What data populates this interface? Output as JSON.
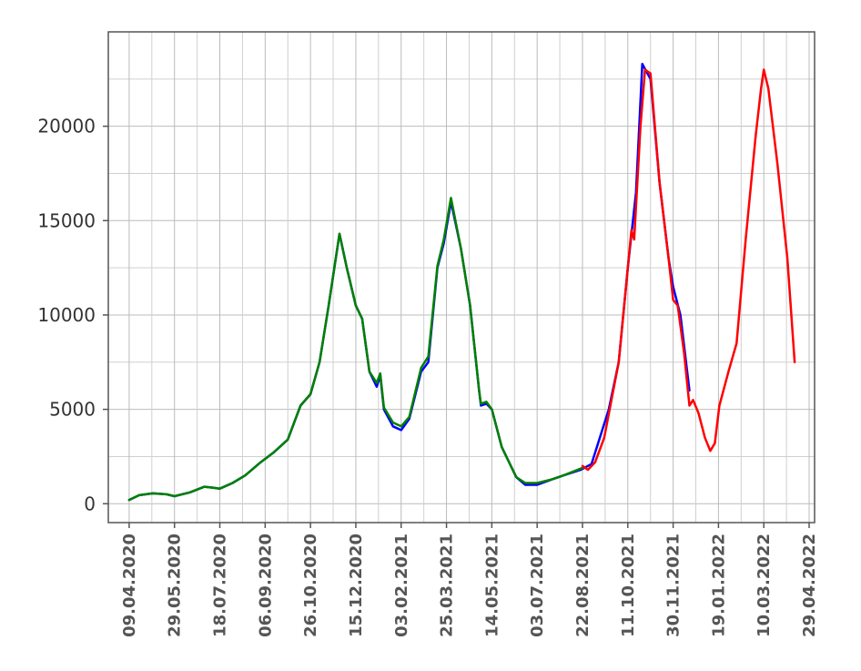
{
  "chart_data": {
    "type": "line",
    "title": "",
    "xlabel": "",
    "ylabel": "",
    "grid": true,
    "legend": "none",
    "x_tick_labels": [
      "09.04.2020",
      "29.05.2020",
      "18.07.2020",
      "06.09.2020",
      "26.10.2020",
      "15.12.2020",
      "03.02.2021",
      "25.03.2021",
      "14.05.2021",
      "03.07.2021",
      "22.08.2021",
      "11.10.2021",
      "30.11.2021",
      "19.01.2022",
      "10.03.2022",
      "29.04.2022"
    ],
    "y_ticks": [
      0,
      5000,
      10000,
      15000,
      20000
    ],
    "y_tick_labels": [
      "0",
      "5000",
      "10000",
      "15000",
      "20000"
    ],
    "xlim": [
      "2020-03-17",
      "2022-05-05"
    ],
    "ylim": [
      -1000,
      25000
    ],
    "series": [
      {
        "color": "#0000ff",
        "points": [
          [
            "2020-04-09",
            200
          ],
          [
            "2020-04-20",
            450
          ],
          [
            "2020-05-05",
            550
          ],
          [
            "2020-05-20",
            500
          ],
          [
            "2020-05-29",
            400
          ],
          [
            "2020-06-15",
            600
          ],
          [
            "2020-07-01",
            900
          ],
          [
            "2020-07-10",
            850
          ],
          [
            "2020-07-18",
            800
          ],
          [
            "2020-08-01",
            1100
          ],
          [
            "2020-08-15",
            1500
          ],
          [
            "2020-09-01",
            2200
          ],
          [
            "2020-09-15",
            2700
          ],
          [
            "2020-10-01",
            3400
          ],
          [
            "2020-10-15",
            5200
          ],
          [
            "2020-10-26",
            5800
          ],
          [
            "2020-11-05",
            7500
          ],
          [
            "2020-11-15",
            10500
          ],
          [
            "2020-11-27",
            14300
          ],
          [
            "2020-12-05",
            12500
          ],
          [
            "2020-12-15",
            10500
          ],
          [
            "2020-12-22",
            9800
          ],
          [
            "2020-12-30",
            7000
          ],
          [
            "2021-01-07",
            6200
          ],
          [
            "2021-01-11",
            6800
          ],
          [
            "2021-01-15",
            5000
          ],
          [
            "2021-01-25",
            4100
          ],
          [
            "2021-02-03",
            3900
          ],
          [
            "2021-02-12",
            4500
          ],
          [
            "2021-02-25",
            7000
          ],
          [
            "2021-03-05",
            7500
          ],
          [
            "2021-03-15",
            12500
          ],
          [
            "2021-03-22",
            13800
          ],
          [
            "2021-03-30",
            16000
          ],
          [
            "2021-04-10",
            13500
          ],
          [
            "2021-04-20",
            10500
          ],
          [
            "2021-04-30",
            6000
          ],
          [
            "2021-05-02",
            5200
          ],
          [
            "2021-05-08",
            5300
          ],
          [
            "2021-05-14",
            5000
          ],
          [
            "2021-05-25",
            3000
          ],
          [
            "2021-06-10",
            1400
          ],
          [
            "2021-06-20",
            1000
          ],
          [
            "2021-07-03",
            1000
          ],
          [
            "2021-07-20",
            1300
          ],
          [
            "2021-08-01",
            1500
          ],
          [
            "2021-08-20",
            1800
          ],
          [
            "2021-09-01",
            2100
          ],
          [
            "2021-09-20",
            5000
          ],
          [
            "2021-10-01",
            7500
          ],
          [
            "2021-10-11",
            12500
          ],
          [
            "2021-10-20",
            16500
          ],
          [
            "2021-10-27",
            23300
          ],
          [
            "2021-11-05",
            22500
          ],
          [
            "2021-11-15",
            17000
          ],
          [
            "2021-11-25",
            13000
          ],
          [
            "2021-11-30",
            11500
          ],
          [
            "2021-12-08",
            10000
          ],
          [
            "2021-12-18",
            6000
          ]
        ]
      },
      {
        "color": "#008000",
        "points": [
          [
            "2020-04-09",
            200
          ],
          [
            "2020-04-20",
            450
          ],
          [
            "2020-05-05",
            550
          ],
          [
            "2020-05-20",
            500
          ],
          [
            "2020-05-29",
            400
          ],
          [
            "2020-06-15",
            600
          ],
          [
            "2020-07-01",
            900
          ],
          [
            "2020-07-10",
            850
          ],
          [
            "2020-07-18",
            800
          ],
          [
            "2020-08-01",
            1100
          ],
          [
            "2020-08-15",
            1500
          ],
          [
            "2020-09-01",
            2200
          ],
          [
            "2020-09-15",
            2700
          ],
          [
            "2020-10-01",
            3400
          ],
          [
            "2020-10-15",
            5200
          ],
          [
            "2020-10-26",
            5800
          ],
          [
            "2020-11-05",
            7500
          ],
          [
            "2020-11-15",
            10500
          ],
          [
            "2020-11-27",
            14300
          ],
          [
            "2020-12-05",
            12500
          ],
          [
            "2020-12-15",
            10500
          ],
          [
            "2020-12-22",
            9800
          ],
          [
            "2020-12-30",
            7000
          ],
          [
            "2021-01-07",
            6400
          ],
          [
            "2021-01-11",
            6900
          ],
          [
            "2021-01-15",
            5100
          ],
          [
            "2021-01-25",
            4300
          ],
          [
            "2021-02-03",
            4100
          ],
          [
            "2021-02-12",
            4600
          ],
          [
            "2021-02-25",
            7200
          ],
          [
            "2021-03-05",
            7800
          ],
          [
            "2021-03-15",
            12600
          ],
          [
            "2021-03-22",
            14000
          ],
          [
            "2021-03-30",
            16200
          ],
          [
            "2021-04-10",
            13500
          ],
          [
            "2021-04-20",
            10500
          ],
          [
            "2021-04-30",
            6000
          ],
          [
            "2021-05-02",
            5300
          ],
          [
            "2021-05-08",
            5400
          ],
          [
            "2021-05-14",
            5000
          ],
          [
            "2021-05-25",
            3000
          ],
          [
            "2021-06-10",
            1400
          ],
          [
            "2021-06-20",
            1100
          ],
          [
            "2021-07-03",
            1100
          ],
          [
            "2021-07-20",
            1300
          ],
          [
            "2021-08-01",
            1500
          ],
          [
            "2021-08-22",
            1900
          ]
        ]
      },
      {
        "color": "#ff0000",
        "points": [
          [
            "2021-08-22",
            2000
          ],
          [
            "2021-08-28",
            1800
          ],
          [
            "2021-09-05",
            2200
          ],
          [
            "2021-09-15",
            3500
          ],
          [
            "2021-10-01",
            7500
          ],
          [
            "2021-10-11",
            12500
          ],
          [
            "2021-10-15",
            14500
          ],
          [
            "2021-10-18",
            14000
          ],
          [
            "2021-10-25",
            20000
          ],
          [
            "2021-10-30",
            23000
          ],
          [
            "2021-11-05",
            22800
          ],
          [
            "2021-11-15",
            17000
          ],
          [
            "2021-11-25",
            13000
          ],
          [
            "2021-11-30",
            10800
          ],
          [
            "2021-12-05",
            10500
          ],
          [
            "2021-12-12",
            8000
          ],
          [
            "2021-12-18",
            5200
          ],
          [
            "2021-12-22",
            5500
          ],
          [
            "2021-12-28",
            4800
          ],
          [
            "2022-01-04",
            3500
          ],
          [
            "2022-01-10",
            2800
          ],
          [
            "2022-01-15",
            3200
          ],
          [
            "2022-01-20",
            5200
          ],
          [
            "2022-01-30",
            7000
          ],
          [
            "2022-02-08",
            8500
          ],
          [
            "2022-02-18",
            14000
          ],
          [
            "2022-03-01",
            19500
          ],
          [
            "2022-03-07",
            22000
          ],
          [
            "2022-03-10",
            23000
          ],
          [
            "2022-03-15",
            22000
          ],
          [
            "2022-03-25",
            18000
          ],
          [
            "2022-04-05",
            13000
          ],
          [
            "2022-04-13",
            7500
          ]
        ]
      }
    ]
  }
}
